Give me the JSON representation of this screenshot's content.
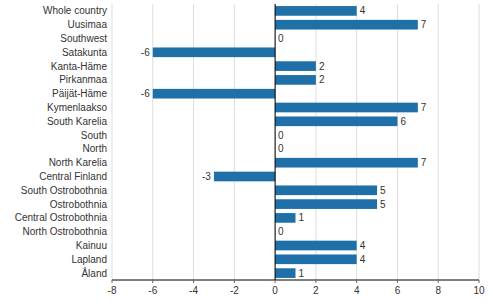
{
  "chart_data": {
    "type": "bar",
    "orientation": "horizontal",
    "categories": [
      "Whole country",
      "Uusimaa",
      "Southwest",
      "Satakunta",
      "Kanta-Häme",
      "Pirkanmaa",
      "Päijät-Häme",
      "Kymenlaakso",
      "South Karelia",
      "South",
      "North",
      "North Karelia",
      "Central Finland",
      "South Ostrobothnia",
      "Ostrobothnia",
      "Central Ostrobothnia",
      "North Ostrobothnia",
      "Kainuu",
      "Lapland",
      "Åland"
    ],
    "values": [
      4,
      7,
      0,
      -6,
      2,
      2,
      -6,
      7,
      6,
      0,
      0,
      7,
      -3,
      5,
      5,
      1,
      0,
      4,
      4,
      1
    ],
    "color": "#1f6fa8",
    "xlim": [
      -8,
      10
    ],
    "xticks": [
      -8,
      -6,
      -4,
      -2,
      0,
      2,
      4,
      6,
      8,
      10
    ],
    "grid": true,
    "data_labels": true
  }
}
